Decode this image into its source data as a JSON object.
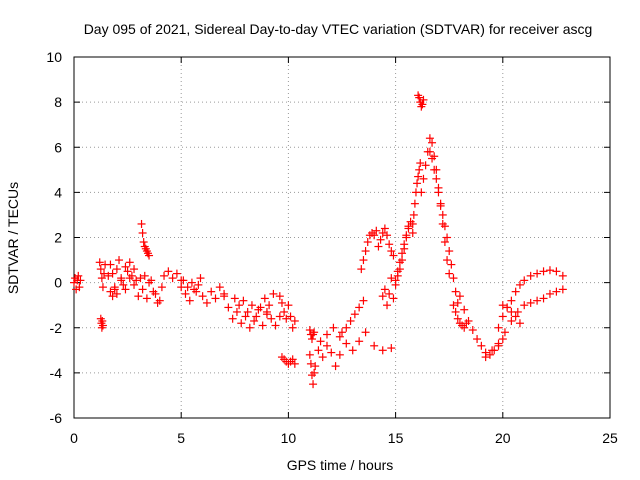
{
  "chart_data": {
    "type": "scatter",
    "title": "Day 095 of 2021, Sidereal Day-to-day VTEC variation (SDTVAR) for receiver ascg",
    "xlabel": "GPS time / hours",
    "ylabel": "SDTVAR / TECUs",
    "xlim": [
      0,
      25
    ],
    "ylim": [
      -6,
      10
    ],
    "xticks": [
      0,
      5,
      10,
      15,
      20,
      25
    ],
    "yticks": [
      -6,
      -4,
      -2,
      0,
      2,
      4,
      6,
      8,
      10
    ],
    "grid": true,
    "marker": "+",
    "series_color": "#ff0000",
    "series": [
      {
        "name": "SDTVAR",
        "segments": [
          {
            "x": [
              0.0,
              0.05,
              0.1,
              0.15,
              0.2,
              0.25,
              0.3
            ],
            "y": [
              0.0,
              0.2,
              -0.3,
              0.1,
              0.3,
              -0.2,
              0.1
            ]
          },
          {
            "x": [
              1.25,
              1.28,
              1.3,
              1.32,
              1.35
            ],
            "y": [
              -1.6,
              -1.8,
              -2.0,
              -1.7,
              -1.9
            ]
          },
          {
            "x": [
              1.2,
              1.25,
              1.3,
              1.35,
              1.4,
              1.45
            ],
            "y": [
              0.9,
              0.6,
              0.2,
              -0.2,
              0.4,
              0.8
            ]
          },
          {
            "x": [
              1.6,
              1.7,
              1.8,
              1.9,
              2.0,
              2.1,
              2.2,
              2.3,
              2.4,
              2.5,
              2.6,
              2.7,
              2.8,
              2.9
            ],
            "y": [
              0.3,
              0.8,
              0.4,
              -0.3,
              0.6,
              1.0,
              0.2,
              -0.1,
              0.7,
              0.5,
              0.9,
              0.3,
              0.6,
              0.1
            ]
          },
          {
            "x": [
              1.7,
              1.8,
              1.9,
              2.0,
              2.2,
              2.4,
              2.6,
              2.8
            ],
            "y": [
              -0.4,
              -0.6,
              -0.2,
              -0.5,
              0.1,
              -0.3,
              0.2,
              -0.1
            ]
          },
          {
            "x": [
              3.15,
              3.2,
              3.25,
              3.3,
              3.35,
              3.4,
              3.45,
              3.5
            ],
            "y": [
              2.6,
              2.2,
              1.8,
              1.6,
              1.5,
              1.4,
              1.3,
              1.2
            ]
          },
          {
            "x": [
              3.0,
              3.2,
              3.4,
              3.6,
              3.8,
              4.0,
              4.2,
              4.4,
              4.6,
              4.8,
              5.0
            ],
            "y": [
              -0.6,
              -0.3,
              -0.7,
              0.1,
              -0.5,
              -0.8,
              0.3,
              0.5,
              0.2,
              0.4,
              0.1
            ]
          },
          {
            "x": [
              3.1,
              3.3,
              3.5,
              3.7,
              3.9,
              4.1
            ],
            "y": [
              0.2,
              0.3,
              0.0,
              -0.4,
              -0.9,
              -0.2
            ]
          },
          {
            "x": [
              5.0,
              5.2,
              5.4,
              5.6,
              5.8,
              6.0,
              6.2,
              6.4,
              6.6,
              6.8,
              7.0
            ],
            "y": [
              -0.2,
              -0.5,
              -0.8,
              -0.3,
              -0.1,
              -0.6,
              -0.9,
              -0.4,
              -0.7,
              -0.2,
              -0.5
            ]
          },
          {
            "x": [
              5.1,
              5.3,
              5.5,
              5.7,
              5.9
            ],
            "y": [
              0.1,
              -0.2,
              0.0,
              -0.4,
              0.2
            ]
          },
          {
            "x": [
              7.0,
              7.2,
              7.4,
              7.6,
              7.8,
              8.0,
              8.2,
              8.4,
              8.6,
              8.8,
              9.0
            ],
            "y": [
              -0.6,
              -1.1,
              -1.6,
              -1.3,
              -1.8,
              -1.5,
              -2.0,
              -1.7,
              -1.2,
              -1.9,
              -1.4
            ]
          },
          {
            "x": [
              7.5,
              7.7,
              7.9,
              8.1,
              8.3,
              8.5,
              8.7,
              8.9,
              9.1,
              9.3
            ],
            "y": [
              -0.7,
              -1.0,
              -0.8,
              -1.3,
              -1.0,
              -1.5,
              -1.1,
              -0.7,
              -1.0,
              -0.5
            ]
          },
          {
            "x": [
              9.0,
              9.2,
              9.4,
              9.6
            ],
            "y": [
              -1.3,
              -1.6,
              -1.9,
              -1.5
            ]
          },
          {
            "x": [
              9.6,
              9.7,
              9.8,
              9.9,
              10.0,
              10.1,
              10.2,
              10.3
            ],
            "y": [
              -0.6,
              -0.9,
              -1.3,
              -1.6,
              -1.0,
              -1.5,
              -2.0,
              -1.7
            ]
          },
          {
            "x": [
              9.7,
              9.8,
              9.9,
              10.0,
              10.1,
              10.2,
              10.3
            ],
            "y": [
              -3.3,
              -3.4,
              -3.5,
              -3.6,
              -3.5,
              -3.4,
              -3.6
            ]
          },
          {
            "x": [
              11.0,
              11.05,
              11.1,
              11.15,
              11.2,
              11.25
            ],
            "y": [
              -3.2,
              -3.6,
              -4.1,
              -4.5,
              -4.0,
              -3.7
            ]
          },
          {
            "x": [
              11.0,
              11.05,
              11.1,
              11.15,
              11.2
            ],
            "y": [
              -2.1,
              -2.3,
              -2.5,
              -2.3,
              -2.2
            ]
          },
          {
            "x": [
              11.4,
              11.6,
              11.8,
              12.0,
              12.2,
              12.4
            ],
            "y": [
              -3.0,
              -3.3,
              -2.8,
              -3.1,
              -3.7,
              -3.2
            ]
          },
          {
            "x": [
              11.5,
              11.8,
              12.1,
              12.4,
              12.7,
              13.0,
              13.3,
              13.6,
              14.0,
              14.4,
              14.8
            ],
            "y": [
              -2.6,
              -2.3,
              -2.0,
              -2.4,
              -2.7,
              -3.0,
              -2.6,
              -2.2,
              -2.8,
              -3.0,
              -2.9
            ]
          },
          {
            "x": [
              12.5,
              12.7,
              12.9,
              13.1,
              13.3,
              13.5
            ],
            "y": [
              -2.2,
              -2.0,
              -1.7,
              -1.4,
              -1.1,
              -0.8
            ]
          },
          {
            "x": [
              13.4,
              13.5,
              13.6,
              13.7,
              13.8,
              13.9,
              14.0,
              14.1
            ],
            "y": [
              0.6,
              1.0,
              1.4,
              1.8,
              2.1,
              2.2,
              2.1,
              2.3
            ]
          },
          {
            "x": [
              14.2,
              14.3,
              14.4,
              14.5,
              14.6,
              14.7,
              14.8,
              14.9
            ],
            "y": [
              1.6,
              1.9,
              2.2,
              2.4,
              2.1,
              1.7,
              1.4,
              1.2
            ]
          },
          {
            "x": [
              14.4,
              14.5,
              14.6,
              14.7,
              14.8,
              14.9,
              15.0,
              15.1,
              15.2,
              15.3,
              15.4,
              15.5,
              15.6
            ],
            "y": [
              -0.6,
              -0.3,
              -1.0,
              -0.5,
              0.2,
              -0.7,
              -0.1,
              0.3,
              0.6,
              1.0,
              1.5,
              2.0,
              2.4
            ]
          },
          {
            "x": [
              15.0,
              15.1,
              15.2,
              15.3,
              15.4,
              15.5,
              15.6,
              15.7,
              15.8
            ],
            "y": [
              0.1,
              0.5,
              0.9,
              1.3,
              1.7,
              2.1,
              2.5,
              2.7,
              2.2
            ]
          },
          {
            "x": [
              15.8,
              15.85,
              15.9,
              15.95,
              16.0,
              16.05,
              16.1,
              16.15
            ],
            "y": [
              2.6,
              3.0,
              3.5,
              4.0,
              4.4,
              4.7,
              5.0,
              5.3
            ]
          },
          {
            "x": [
              16.05,
              16.1,
              16.15,
              16.2,
              16.25,
              16.3
            ],
            "y": [
              8.3,
              8.2,
              8.0,
              7.8,
              7.9,
              8.1
            ]
          },
          {
            "x": [
              16.2,
              16.3,
              16.4,
              16.5,
              16.6,
              16.7,
              16.8,
              16.9,
              17.0,
              17.1,
              17.2,
              17.3,
              17.4,
              17.5
            ],
            "y": [
              4.0,
              4.6,
              5.2,
              5.8,
              6.4,
              6.2,
              5.6,
              5.0,
              4.2,
              3.4,
              2.6,
              1.8,
              1.0,
              0.4
            ]
          },
          {
            "x": [
              16.6,
              16.7,
              16.8,
              16.9,
              17.0,
              17.1,
              17.2,
              17.3,
              17.4,
              17.5,
              17.6,
              17.7,
              17.8,
              17.9
            ],
            "y": [
              5.8,
              5.5,
              5.0,
              4.6,
              4.0,
              3.5,
              3.0,
              2.5,
              2.0,
              1.4,
              0.8,
              0.2,
              -0.4,
              -0.9
            ]
          },
          {
            "x": [
              17.7,
              17.8,
              17.9,
              18.0,
              18.1,
              18.2,
              18.3
            ],
            "y": [
              -1.0,
              -1.3,
              -1.6,
              -1.8,
              -1.9,
              -2.0,
              -1.8
            ]
          },
          {
            "x": [
              18.0,
              18.2,
              18.4,
              18.6,
              18.8,
              19.0,
              19.2,
              19.4,
              19.6,
              19.8,
              20.0
            ],
            "y": [
              -0.6,
              -1.2,
              -1.7,
              -2.1,
              -2.5,
              -2.8,
              -3.1,
              -3.2,
              -3.0,
              -2.8,
              -2.5
            ]
          },
          {
            "x": [
              19.2,
              19.5,
              19.8,
              20.1,
              20.4,
              20.7,
              21.0,
              21.3,
              21.6,
              21.9,
              22.2,
              22.5,
              22.8
            ],
            "y": [
              -3.3,
              -3.0,
              -2.7,
              -2.2,
              -1.7,
              -1.3,
              -1.0,
              -0.9,
              -0.8,
              -0.7,
              -0.5,
              -0.4,
              -0.3
            ]
          },
          {
            "x": [
              19.8,
              20.0,
              20.2,
              20.4,
              20.6,
              20.8,
              21.0,
              21.3,
              21.6,
              21.9,
              22.2,
              22.5,
              22.8
            ],
            "y": [
              -2.0,
              -1.5,
              -1.1,
              -0.8,
              -0.4,
              -0.1,
              0.1,
              0.3,
              0.4,
              0.5,
              0.55,
              0.5,
              0.3
            ]
          },
          {
            "x": [
              20.0,
              20.2,
              20.4,
              20.6,
              20.8
            ],
            "y": [
              -1.0,
              -1.1,
              -1.3,
              -1.5,
              -1.8
            ]
          }
        ]
      }
    ]
  }
}
